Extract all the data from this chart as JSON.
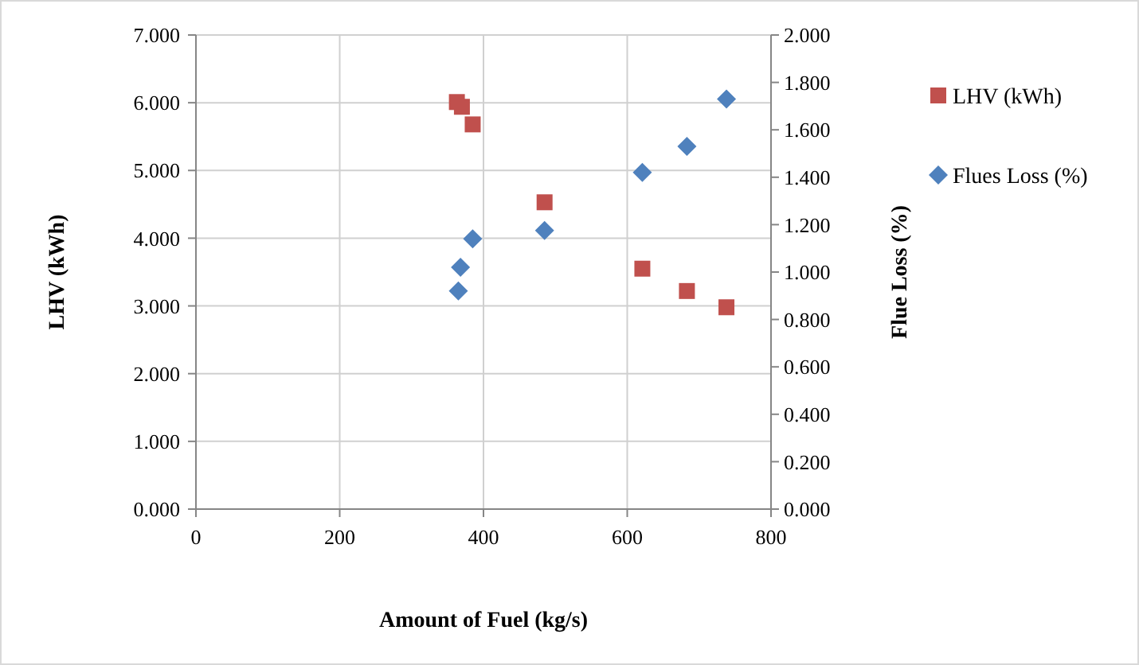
{
  "chart_data": {
    "type": "scatter",
    "xlabel": "Amount of Fuel (kg/s)",
    "ylabel": "LHV (kWh)",
    "y2label": "Flue Loss (%)",
    "xlim": [
      0,
      800
    ],
    "xticks": [
      0,
      200,
      400,
      600,
      800
    ],
    "ylim": [
      0,
      7
    ],
    "yticks": [
      {
        "value": 0,
        "label": "0.000"
      },
      {
        "value": 1,
        "label": "1.000"
      },
      {
        "value": 2,
        "label": "2.000"
      },
      {
        "value": 3,
        "label": "3.000"
      },
      {
        "value": 4,
        "label": "4.000"
      },
      {
        "value": 5,
        "label": "5.000"
      },
      {
        "value": 6,
        "label": "6.000"
      },
      {
        "value": 7,
        "label": "7.000"
      }
    ],
    "y2lim": [
      0,
      2
    ],
    "y2ticks": [
      {
        "value": 0,
        "label": "0.000"
      },
      {
        "value": 0.2,
        "label": "0.200"
      },
      {
        "value": 0.4,
        "label": "0.400"
      },
      {
        "value": 0.6,
        "label": "0.600"
      },
      {
        "value": 0.8,
        "label": "0.800"
      },
      {
        "value": 1,
        "label": "1.000"
      },
      {
        "value": 1.2,
        "label": "1.200"
      },
      {
        "value": 1.4,
        "label": "1.400"
      },
      {
        "value": 1.6,
        "label": "1.600"
      },
      {
        "value": 1.8,
        "label": "1.800"
      },
      {
        "value": 2,
        "label": "2.000"
      }
    ],
    "grid": true,
    "legend": "right",
    "series": [
      {
        "name": "LHV (kWh)",
        "color": "#c0504d",
        "marker": "square",
        "x": [
          363,
          370,
          385,
          485,
          621,
          683,
          738
        ],
        "values": [
          6.01,
          5.94,
          5.68,
          4.53,
          3.55,
          3.22,
          2.98
        ]
      },
      {
        "name": "Flues Loss (%)",
        "color": "#4f81bd",
        "marker": "diamond",
        "axis": "y2",
        "x": [
          365,
          368,
          385,
          485,
          621,
          683,
          738
        ],
        "values": [
          0.92,
          1.02,
          1.14,
          1.175,
          1.42,
          1.53,
          1.73
        ]
      }
    ]
  }
}
